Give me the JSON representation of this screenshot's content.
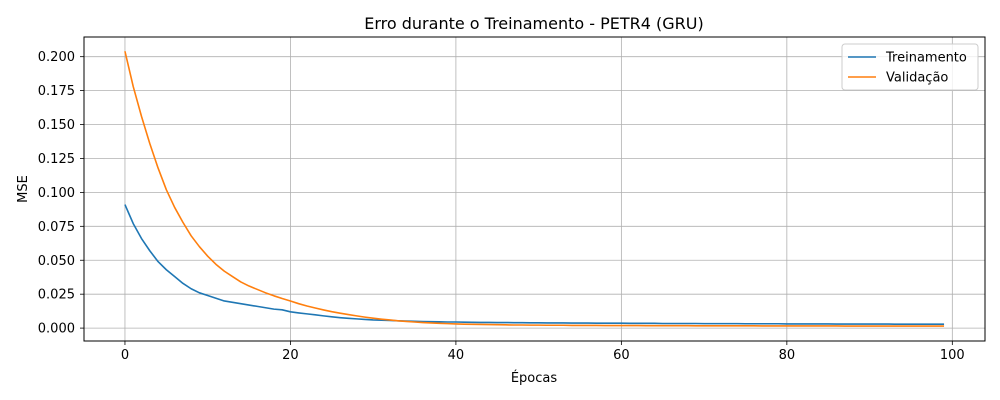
{
  "chart_data": {
    "type": "line",
    "title": "Erro durante o Treinamento - PETR4 (GRU)",
    "xlabel": "Épocas",
    "ylabel": "MSE",
    "xlim": [
      -4.95,
      103.95
    ],
    "ylim": [
      -0.0095,
      0.2145
    ],
    "xticks": [
      0,
      20,
      40,
      60,
      80,
      100
    ],
    "yticks": [
      0.0,
      0.025,
      0.05,
      0.075,
      0.1,
      0.125,
      0.15,
      0.175,
      0.2
    ],
    "ytick_labels": [
      "0.000",
      "0.025",
      "0.050",
      "0.075",
      "0.100",
      "0.125",
      "0.150",
      "0.175",
      "0.200"
    ],
    "grid": true,
    "legend_position": "top-right",
    "series": [
      {
        "name": "Treinamento",
        "color": "#1f77b4",
        "x": [
          0,
          1,
          2,
          3,
          4,
          5,
          6,
          7,
          8,
          9,
          10,
          11,
          12,
          13,
          14,
          15,
          16,
          17,
          18,
          19,
          20,
          21,
          22,
          23,
          24,
          25,
          26,
          27,
          28,
          29,
          30,
          31,
          32,
          33,
          34,
          35,
          36,
          37,
          38,
          39,
          40,
          41,
          42,
          43,
          44,
          45,
          46,
          47,
          48,
          49,
          50,
          51,
          52,
          53,
          54,
          55,
          56,
          57,
          58,
          59,
          60,
          61,
          62,
          63,
          64,
          65,
          66,
          67,
          68,
          69,
          70,
          71,
          72,
          73,
          74,
          75,
          76,
          77,
          78,
          79,
          80,
          81,
          82,
          83,
          84,
          85,
          86,
          87,
          88,
          89,
          90,
          91,
          92,
          93,
          94,
          95,
          96,
          97,
          98,
          99
        ],
        "values": [
          0.091,
          0.077,
          0.066,
          0.057,
          0.049,
          0.043,
          0.038,
          0.033,
          0.029,
          0.026,
          0.024,
          0.022,
          0.02,
          0.019,
          0.018,
          0.017,
          0.016,
          0.015,
          0.014,
          0.0135,
          0.012,
          0.0112,
          0.0105,
          0.0098,
          0.009,
          0.0083,
          0.0077,
          0.0072,
          0.0068,
          0.0064,
          0.006,
          0.0058,
          0.0056,
          0.0054,
          0.0052,
          0.005,
          0.0048,
          0.0047,
          0.0046,
          0.0045,
          0.0045,
          0.0044,
          0.0043,
          0.0042,
          0.0042,
          0.0041,
          0.0041,
          0.004,
          0.004,
          0.0039,
          0.0039,
          0.0038,
          0.0038,
          0.0038,
          0.0037,
          0.0037,
          0.0037,
          0.0036,
          0.0036,
          0.0036,
          0.0036,
          0.0035,
          0.0035,
          0.0035,
          0.0035,
          0.0034,
          0.0034,
          0.0034,
          0.0034,
          0.0034,
          0.0033,
          0.0033,
          0.0033,
          0.0033,
          0.0033,
          0.0032,
          0.0032,
          0.0032,
          0.0032,
          0.0032,
          0.0031,
          0.0031,
          0.0031,
          0.0031,
          0.0031,
          0.0031,
          0.003,
          0.003,
          0.003,
          0.003,
          0.003,
          0.003,
          0.003,
          0.0029,
          0.0029,
          0.0029,
          0.0029,
          0.0029,
          0.0029,
          0.0029
        ]
      },
      {
        "name": "Validação",
        "color": "#ff7f0e",
        "x": [
          0,
          1,
          2,
          3,
          4,
          5,
          6,
          7,
          8,
          9,
          10,
          11,
          12,
          13,
          14,
          15,
          16,
          17,
          18,
          19,
          20,
          21,
          22,
          23,
          24,
          25,
          26,
          27,
          28,
          29,
          30,
          31,
          32,
          33,
          34,
          35,
          36,
          37,
          38,
          39,
          40,
          41,
          42,
          43,
          44,
          45,
          46,
          47,
          48,
          49,
          50,
          51,
          52,
          53,
          54,
          55,
          56,
          57,
          58,
          59,
          60,
          61,
          62,
          63,
          64,
          65,
          66,
          67,
          68,
          69,
          70,
          71,
          72,
          73,
          74,
          75,
          76,
          77,
          78,
          79,
          80,
          81,
          82,
          83,
          84,
          85,
          86,
          87,
          88,
          89,
          90,
          91,
          92,
          93,
          94,
          95,
          96,
          97,
          98,
          99
        ],
        "values": [
          0.204,
          0.178,
          0.156,
          0.136,
          0.118,
          0.102,
          0.089,
          0.078,
          0.068,
          0.06,
          0.053,
          0.047,
          0.042,
          0.038,
          0.034,
          0.031,
          0.0285,
          0.026,
          0.0238,
          0.0218,
          0.02,
          0.018,
          0.0163,
          0.0148,
          0.0134,
          0.0121,
          0.011,
          0.01,
          0.009,
          0.0081,
          0.0073,
          0.0066,
          0.006,
          0.0054,
          0.0049,
          0.0045,
          0.0041,
          0.0038,
          0.0035,
          0.0033,
          0.0031,
          0.0029,
          0.0028,
          0.0027,
          0.0026,
          0.0025,
          0.0024,
          0.0023,
          0.0023,
          0.0022,
          0.0022,
          0.0021,
          0.0021,
          0.0021,
          0.002,
          0.002,
          0.002,
          0.002,
          0.0019,
          0.0019,
          0.0019,
          0.0019,
          0.0019,
          0.0018,
          0.0018,
          0.0018,
          0.0018,
          0.0018,
          0.0018,
          0.0017,
          0.0017,
          0.0017,
          0.0017,
          0.0017,
          0.0017,
          0.0017,
          0.0017,
          0.0016,
          0.0016,
          0.0016,
          0.0016,
          0.0016,
          0.0016,
          0.0016,
          0.0016,
          0.0016,
          0.0016,
          0.0015,
          0.0015,
          0.0015,
          0.0015,
          0.0015,
          0.0015,
          0.0015,
          0.0015,
          0.0015,
          0.0015,
          0.0015,
          0.0015,
          0.0015
        ]
      }
    ]
  }
}
